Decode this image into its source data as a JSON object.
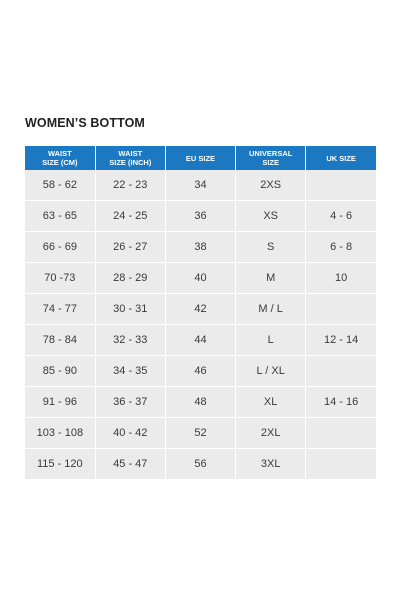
{
  "title": "WOMEN’S BOTTOM",
  "accent_color": "#1c78c0",
  "row_color": "#ebebeb",
  "table": {
    "headers": [
      [
        "WAIST",
        "SIZE (CM)"
      ],
      [
        "WAIST",
        "SIZE (INCH)"
      ],
      [
        "EU SIZE"
      ],
      [
        "UNIVERSAL",
        "SIZE"
      ],
      [
        "UK SIZE"
      ]
    ],
    "rows": [
      [
        "58 - 62",
        "22 - 23",
        "34",
        "2XS",
        ""
      ],
      [
        "63 - 65",
        "24 - 25",
        "36",
        "XS",
        "4 - 6"
      ],
      [
        "66 - 69",
        "26 - 27",
        "38",
        "S",
        "6 - 8"
      ],
      [
        "70 -73",
        "28 - 29",
        "40",
        "M",
        "10"
      ],
      [
        "74 - 77",
        "30 - 31",
        "42",
        "M / L",
        ""
      ],
      [
        "78 - 84",
        "32 - 33",
        "44",
        "L",
        "12 - 14"
      ],
      [
        "85 - 90",
        "34 - 35",
        "46",
        "L / XL",
        ""
      ],
      [
        "91 - 96",
        "36 - 37",
        "48",
        "XL",
        "14 - 16"
      ],
      [
        "103 - 108",
        "40 - 42",
        "52",
        "2XL",
        ""
      ],
      [
        "115 - 120",
        "45 - 47",
        "56",
        "3XL",
        ""
      ]
    ]
  }
}
